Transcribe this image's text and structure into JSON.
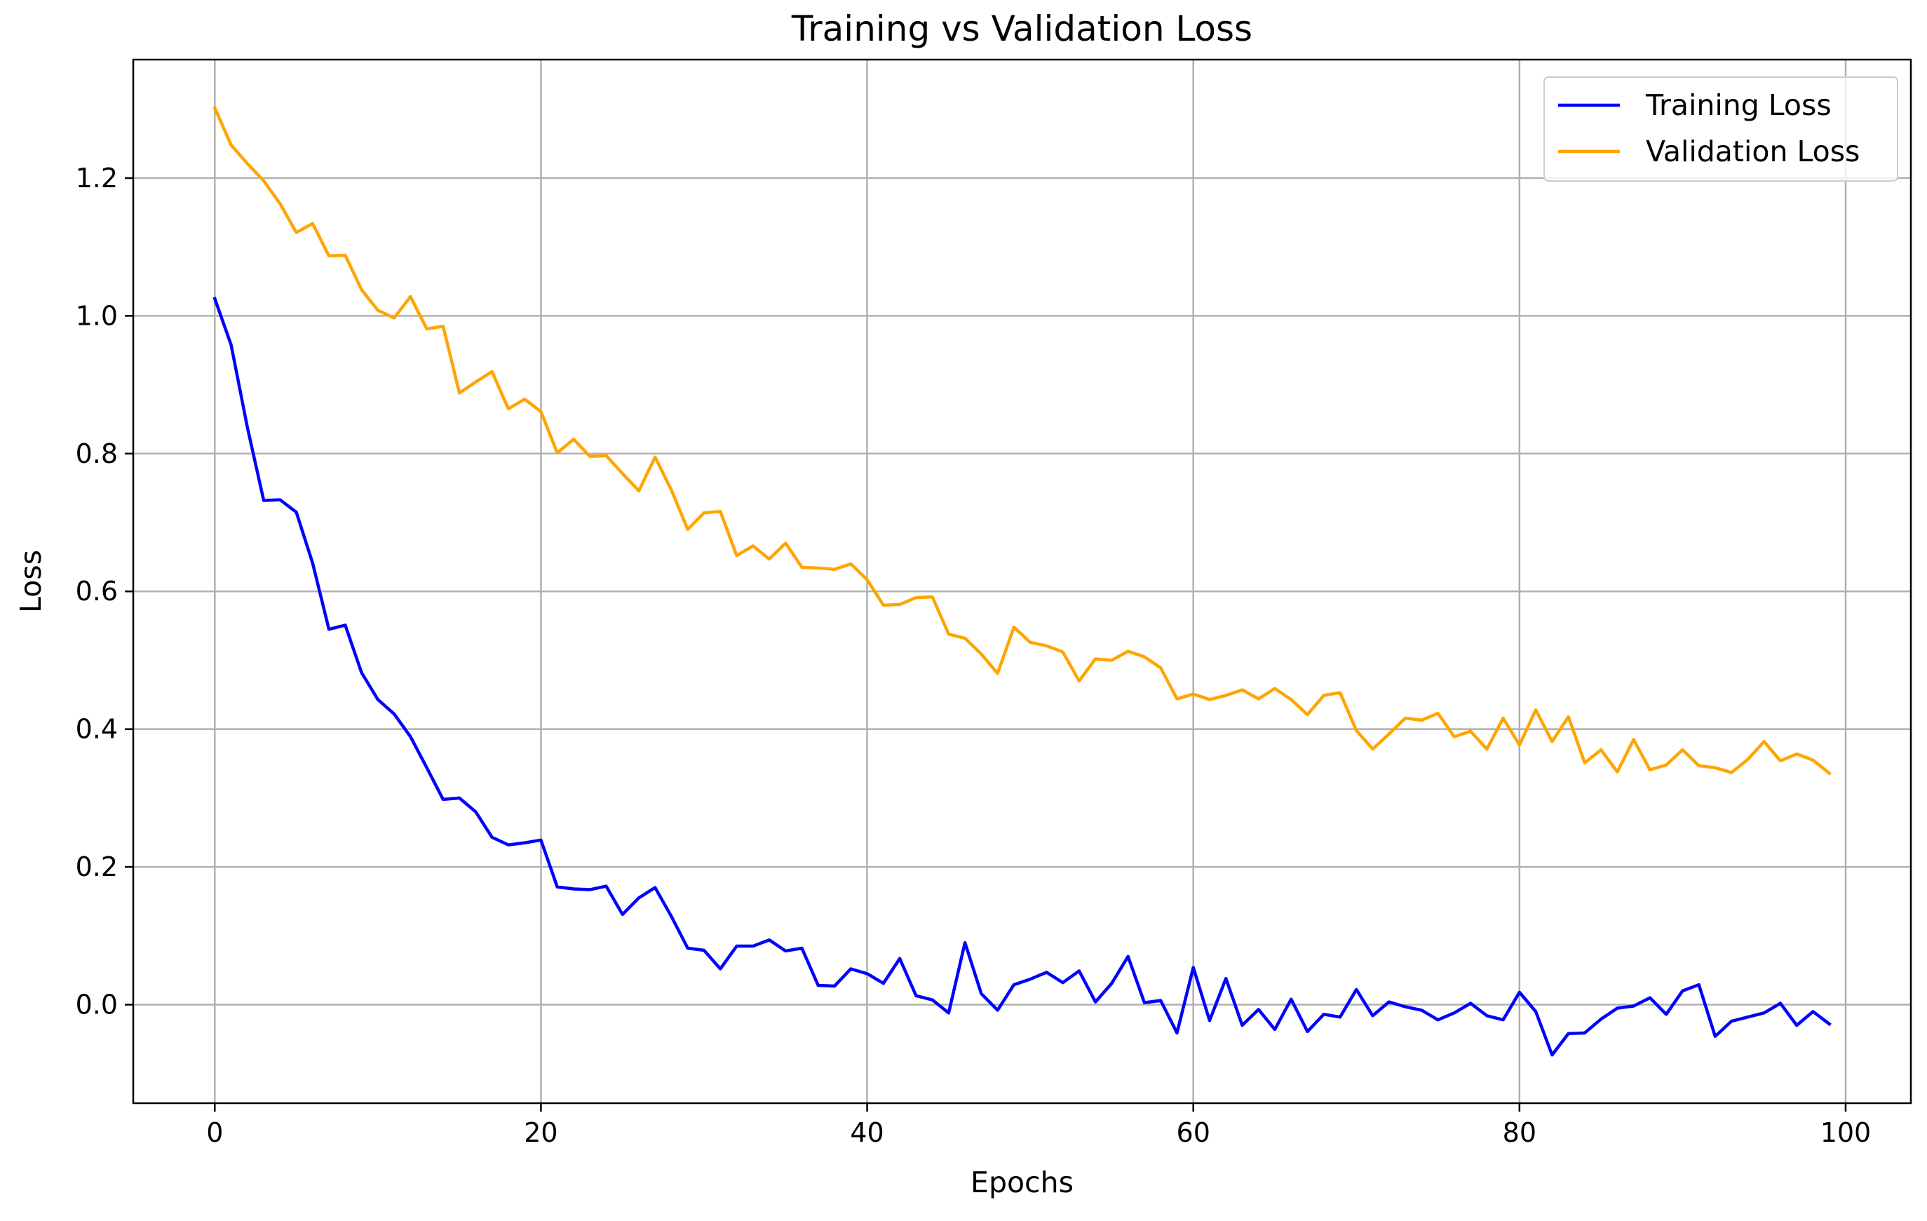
{
  "chart_data": {
    "type": "line",
    "title": "Training vs Validation Loss",
    "xlabel": "Epochs",
    "ylabel": "Loss",
    "xlim": [
      -5,
      104
    ],
    "ylim": [
      -0.143,
      1.372
    ],
    "xticks": [
      0,
      20,
      40,
      60,
      80,
      100
    ],
    "yticks": [
      0.0,
      0.2,
      0.4,
      0.6,
      0.8,
      1.0,
      1.2
    ],
    "xtick_labels": [
      "0",
      "20",
      "40",
      "60",
      "80",
      "100"
    ],
    "ytick_labels": [
      "0.0",
      "0.2",
      "0.4",
      "0.6",
      "0.8",
      "1.0",
      "1.2"
    ],
    "grid": true,
    "legend_position": "top-right",
    "colors": {
      "grid": "#b0b0b0",
      "axes": "#000000",
      "background": "#ffffff"
    },
    "series": [
      {
        "name": "Training Loss",
        "color": "#0000ff",
        "values": [
          1.025,
          0.958,
          0.838,
          0.732,
          0.733,
          0.715,
          0.641,
          0.545,
          0.551,
          0.482,
          0.443,
          0.422,
          0.389,
          0.344,
          0.298,
          0.3,
          0.28,
          0.243,
          0.232,
          0.235,
          0.239,
          0.171,
          0.168,
          0.167,
          0.172,
          0.131,
          0.155,
          0.17,
          0.128,
          0.082,
          0.079,
          0.052,
          0.085,
          0.085,
          0.094,
          0.078,
          0.082,
          0.028,
          0.027,
          0.052,
          0.045,
          0.031,
          0.067,
          0.013,
          0.007,
          -0.012,
          0.09,
          0.016,
          -0.008,
          0.029,
          0.037,
          0.047,
          0.032,
          0.049,
          0.004,
          0.031,
          0.07,
          0.003,
          0.006,
          -0.041,
          0.054,
          -0.023,
          0.038,
          -0.03,
          -0.007,
          -0.036,
          0.008,
          -0.039,
          -0.014,
          -0.018,
          0.022,
          -0.016,
          0.004,
          -0.003,
          -0.008,
          -0.022,
          -0.012,
          0.002,
          -0.016,
          -0.022,
          0.018,
          -0.01,
          -0.073,
          -0.042,
          -0.041,
          -0.021,
          -0.005,
          -0.002,
          0.01,
          -0.014,
          0.02,
          0.029,
          -0.046,
          -0.024,
          -0.018,
          -0.012,
          0.002,
          -0.03,
          -0.01,
          -0.028
        ]
      },
      {
        "name": "Validation Loss",
        "color": "#ffa500",
        "values": [
          1.302,
          1.248,
          1.221,
          1.196,
          1.163,
          1.121,
          1.134,
          1.087,
          1.088,
          1.038,
          1.008,
          0.997,
          1.028,
          0.981,
          0.985,
          0.888,
          0.904,
          0.919,
          0.865,
          0.879,
          0.861,
          0.801,
          0.821,
          0.796,
          0.797,
          0.771,
          0.746,
          0.795,
          0.747,
          0.69,
          0.714,
          0.716,
          0.652,
          0.666,
          0.647,
          0.67,
          0.635,
          0.634,
          0.632,
          0.64,
          0.617,
          0.58,
          0.581,
          0.591,
          0.592,
          0.538,
          0.532,
          0.509,
          0.481,
          0.548,
          0.526,
          0.521,
          0.512,
          0.47,
          0.502,
          0.5,
          0.513,
          0.505,
          0.489,
          0.444,
          0.451,
          0.443,
          0.449,
          0.457,
          0.444,
          0.459,
          0.443,
          0.421,
          0.449,
          0.453,
          0.398,
          0.371,
          0.393,
          0.416,
          0.413,
          0.423,
          0.389,
          0.397,
          0.371,
          0.416,
          0.377,
          0.428,
          0.382,
          0.418,
          0.351,
          0.37,
          0.338,
          0.385,
          0.341,
          0.348,
          0.37,
          0.347,
          0.344,
          0.337,
          0.356,
          0.382,
          0.354,
          0.364,
          0.355,
          0.336
        ]
      }
    ]
  }
}
